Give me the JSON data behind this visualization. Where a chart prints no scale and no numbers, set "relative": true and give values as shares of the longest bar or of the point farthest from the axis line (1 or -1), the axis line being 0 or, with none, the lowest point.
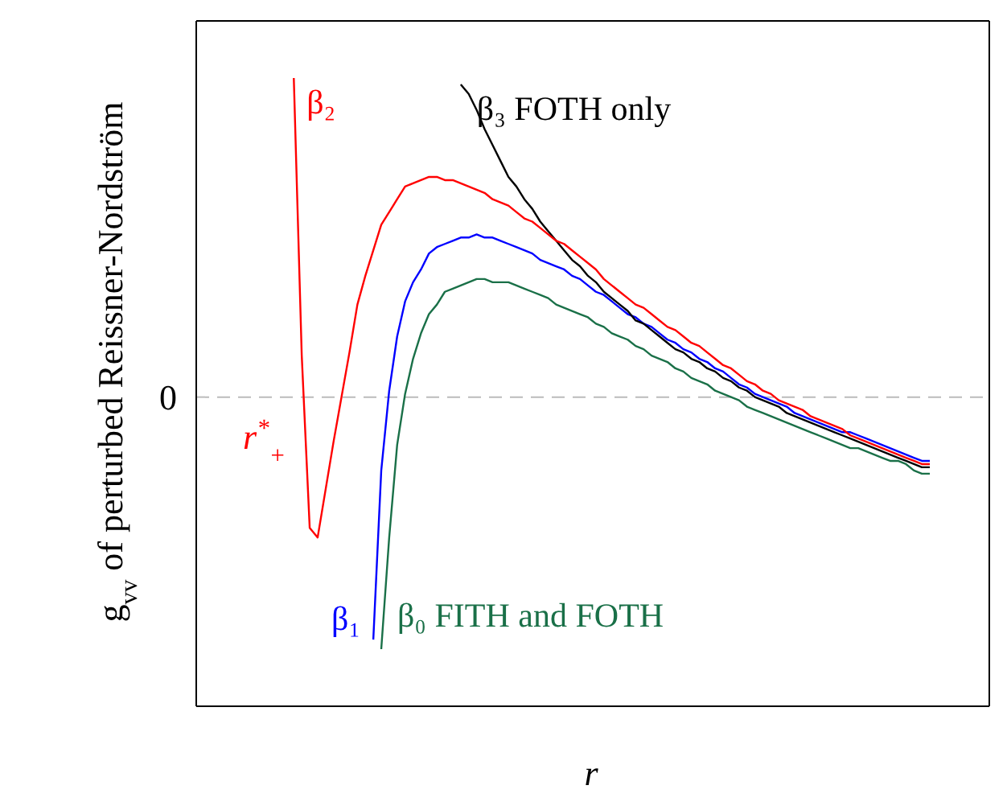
{
  "chart_data": {
    "type": "line",
    "relative": true,
    "xlabel": "r",
    "ylabel": "g$_{vv}$ of perturbed Reissner-Nordström",
    "tick_labels": false,
    "legend": false,
    "marker": "none",
    "line_style": "solid",
    "categories": [
      null,
      null,
      null,
      null,
      null,
      null,
      null,
      null,
      null,
      null,
      null,
      null,
      null,
      null,
      null,
      null,
      null,
      null,
      null,
      null,
      null,
      null,
      null,
      null,
      null,
      null,
      null,
      null,
      null,
      null,
      null,
      null,
      null,
      null,
      null,
      null,
      null,
      null,
      null,
      null,
      null,
      null,
      null,
      null,
      null,
      null,
      null,
      null,
      null,
      null,
      null,
      null,
      null,
      null,
      null,
      null,
      null,
      null,
      null,
      null,
      null,
      null,
      null,
      null,
      null,
      null,
      null,
      null,
      null,
      null,
      null,
      null,
      null,
      null,
      null,
      null,
      null,
      null,
      null,
      null,
      null
    ],
    "ref_lines": [
      {
        "axis": "y",
        "value": 0,
        "label": "0",
        "color": "#bbbbbb",
        "line_style": "dashed"
      }
    ],
    "annotations": [
      "r$^{*}$$_{+}$"
    ],
    "series": [
      {
        "name": "β₂",
        "color": "#ff0000",
        "values": [
          1,
          0.13,
          -0.41,
          -0.44,
          -0.29,
          -0.14,
          0,
          0.14,
          0.29,
          0.38,
          0.46,
          0.54,
          0.58,
          0.62,
          0.66,
          0.67,
          0.68,
          0.69,
          0.69,
          0.68,
          0.68,
          0.67,
          0.66,
          0.65,
          0.64,
          0.62,
          0.61,
          0.6,
          0.58,
          0.56,
          0.55,
          0.53,
          0.51,
          0.49,
          0.48,
          0.46,
          0.44,
          0.42,
          0.4,
          0.37,
          0.35,
          0.33,
          0.31,
          0.29,
          0.28,
          0.26,
          0.24,
          0.22,
          0.21,
          0.19,
          0.17,
          0.16,
          0.14,
          0.12,
          0.1,
          0.09,
          0.07,
          0.05,
          0.04,
          0.02,
          0.01,
          -0.01,
          -0.02,
          -0.03,
          -0.04,
          -0.06,
          -0.07,
          -0.08,
          -0.09,
          -0.1,
          -0.12,
          -0.13,
          -0.14,
          -0.15,
          -0.16,
          -0.17,
          -0.18,
          -0.19,
          -0.2,
          -0.21,
          -0.21
        ]
      },
      {
        "name": "β₃ FOTH only",
        "color": "#000000",
        "values": [
          null,
          null,
          null,
          null,
          null,
          null,
          null,
          null,
          null,
          null,
          null,
          null,
          null,
          null,
          null,
          null,
          null,
          null,
          null,
          null,
          null,
          0.98,
          0.95,
          0.9,
          0.84,
          0.79,
          0.74,
          0.69,
          0.66,
          0.62,
          0.59,
          0.55,
          0.52,
          0.49,
          0.46,
          0.43,
          0.41,
          0.38,
          0.36,
          0.33,
          0.31,
          0.29,
          0.27,
          0.24,
          0.23,
          0.21,
          0.19,
          0.17,
          0.15,
          0.14,
          0.12,
          0.11,
          0.09,
          0.08,
          0.06,
          0.05,
          0.03,
          0.02,
          0,
          -0.01,
          -0.02,
          -0.03,
          -0.05,
          -0.06,
          -0.07,
          -0.08,
          -0.09,
          -0.1,
          -0.11,
          -0.12,
          -0.13,
          -0.14,
          -0.15,
          -0.16,
          -0.17,
          -0.18,
          -0.19,
          -0.2,
          -0.21,
          -0.22,
          -0.22
        ]
      },
      {
        "name": "β₁",
        "color": "#0000ff",
        "values": [
          null,
          null,
          null,
          null,
          null,
          null,
          null,
          null,
          null,
          null,
          -0.76,
          -0.23,
          0.02,
          0.19,
          0.3,
          0.36,
          0.4,
          0.45,
          0.47,
          0.48,
          0.49,
          0.5,
          0.5,
          0.51,
          0.5,
          0.5,
          0.49,
          0.48,
          0.47,
          0.46,
          0.45,
          0.43,
          0.42,
          0.41,
          0.4,
          0.38,
          0.37,
          0.35,
          0.33,
          0.32,
          0.3,
          0.28,
          0.26,
          0.25,
          0.23,
          0.22,
          0.2,
          0.18,
          0.17,
          0.15,
          0.14,
          0.12,
          0.11,
          0.09,
          0.08,
          0.06,
          0.04,
          0.03,
          0.01,
          0,
          -0.01,
          -0.02,
          -0.03,
          -0.05,
          -0.06,
          -0.07,
          -0.08,
          -0.09,
          -0.1,
          -0.11,
          -0.11,
          -0.12,
          -0.13,
          -0.14,
          -0.15,
          -0.16,
          -0.17,
          -0.18,
          -0.19,
          -0.2,
          -0.2
        ]
      },
      {
        "name": "β₀ FITH and FOTH",
        "color": "#1a7048",
        "values": [
          null,
          null,
          null,
          null,
          null,
          null,
          null,
          null,
          null,
          null,
          null,
          -0.79,
          -0.44,
          -0.15,
          0.01,
          0.12,
          0.2,
          0.26,
          0.29,
          0.33,
          0.34,
          0.35,
          0.36,
          0.37,
          0.37,
          0.36,
          0.36,
          0.36,
          0.35,
          0.34,
          0.33,
          0.32,
          0.31,
          0.29,
          0.28,
          0.27,
          0.26,
          0.25,
          0.23,
          0.22,
          0.2,
          0.19,
          0.18,
          0.16,
          0.15,
          0.13,
          0.12,
          0.11,
          0.09,
          0.08,
          0.06,
          0.05,
          0.04,
          0.02,
          0.01,
          0,
          -0.01,
          -0.03,
          -0.04,
          -0.05,
          -0.06,
          -0.07,
          -0.08,
          -0.09,
          -0.1,
          -0.11,
          -0.12,
          -0.13,
          -0.14,
          -0.15,
          -0.16,
          -0.16,
          -0.17,
          -0.18,
          -0.19,
          -0.2,
          -0.2,
          -0.21,
          -0.23,
          -0.24,
          -0.24
        ]
      }
    ]
  }
}
